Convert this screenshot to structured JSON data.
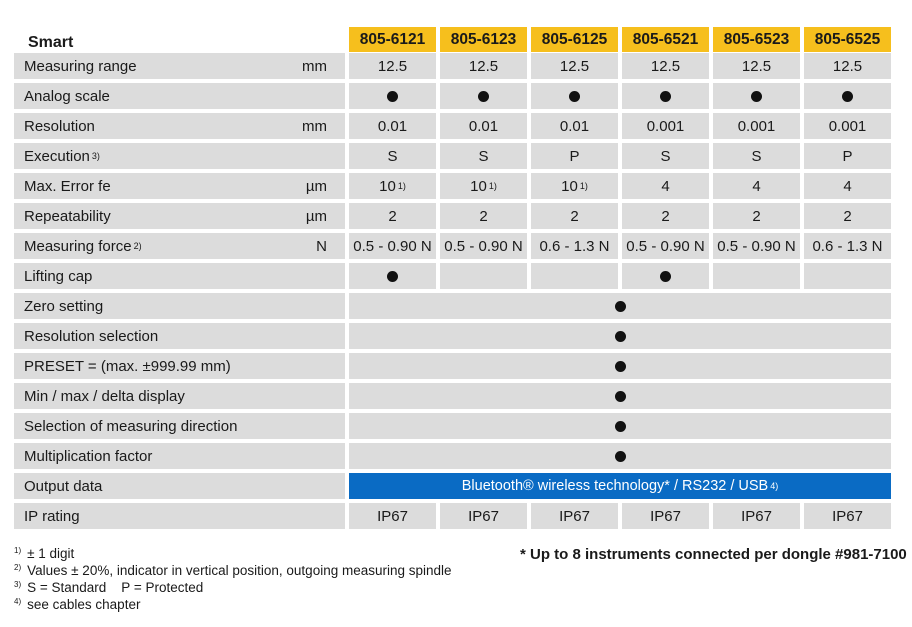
{
  "title": "Smart",
  "models": [
    "805-6121",
    "805-6123",
    "805-6125",
    "805-6521",
    "805-6523",
    "805-6525"
  ],
  "rows": [
    {
      "label": "Measuring range",
      "unit": "mm",
      "values": [
        "12.5",
        "12.5",
        "12.5",
        "12.5",
        "12.5",
        "12.5"
      ]
    },
    {
      "label": "Analog scale",
      "values": [
        "dot",
        "dot",
        "dot",
        "dot",
        "dot",
        "dot"
      ]
    },
    {
      "label": "Resolution",
      "unit": "mm",
      "values": [
        "0.01",
        "0.01",
        "0.01",
        "0.001",
        "0.001",
        "0.001"
      ]
    },
    {
      "label": "Execution",
      "sup": "3)",
      "values": [
        "S",
        "S",
        "P",
        "S",
        "S",
        "P"
      ]
    },
    {
      "label": "Max. Error fe",
      "unit": "µm",
      "values": [
        "10",
        "10",
        "10",
        "4",
        "4",
        "4"
      ],
      "value_sups": [
        "1)",
        "1)",
        "1)",
        "",
        "",
        ""
      ]
    },
    {
      "label": "Repeatability",
      "unit": "µm",
      "values": [
        "2",
        "2",
        "2",
        "2",
        "2",
        "2"
      ]
    },
    {
      "label": "Measuring force",
      "sup": "2)",
      "unit": "N",
      "values": [
        "0.5 - 0.90 N",
        "0.5 - 0.90 N",
        "0.6 - 1.3 N",
        "0.5 - 0.90 N",
        "0.5 - 0.90 N",
        "0.6 - 1.3 N"
      ]
    },
    {
      "label": "Lifting cap",
      "values": [
        "dot",
        "",
        "",
        "dot",
        "",
        ""
      ]
    },
    {
      "label": "Zero setting",
      "merged": "dot"
    },
    {
      "label": "Resolution selection",
      "merged": "dot"
    },
    {
      "label": "PRESET = (max. ±999.99 mm)",
      "merged": "dot"
    },
    {
      "label": "Min / max / delta display",
      "merged": "dot"
    },
    {
      "label": "Selection of measuring direction",
      "merged": "dot"
    },
    {
      "label": "Multiplication factor",
      "merged": "dot"
    },
    {
      "label": "Output data",
      "merged_text": "Bluetooth® wireless technology* / RS232 / USB",
      "merged_sup": "4)",
      "highlight_color": "#0a6bc4"
    },
    {
      "label": "IP rating",
      "values": [
        "IP67",
        "IP67",
        "IP67",
        "IP67",
        "IP67",
        "IP67"
      ]
    }
  ],
  "footnotes": [
    {
      "mark": "1)",
      "text": "± 1 digit"
    },
    {
      "mark": "2)",
      "text": "Values ± 20%, indicator in vertical position, outgoing measuring spindle"
    },
    {
      "mark": "3)",
      "text": "S = Standard    P = Protected"
    },
    {
      "mark": "4)",
      "text": "see cables chapter"
    }
  ],
  "dongle_note": "* Up to 8 instruments connected per dongle #981-7100",
  "colors": {
    "header": "#f6bf1d",
    "row": "#dcdcdc",
    "bluetooth": "#0a6bc4"
  }
}
